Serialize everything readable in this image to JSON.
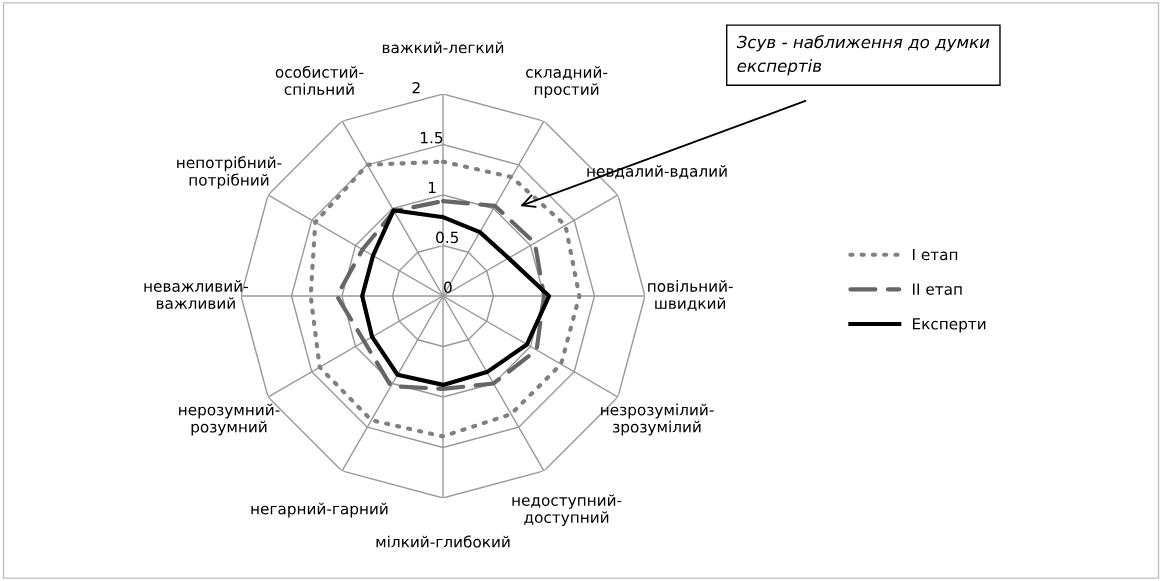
{
  "chart_data": {
    "type": "radar",
    "categories": [
      "важкий-легкий",
      "складний-\nпростий",
      "невдалий-вдалий",
      "повільний-\nшвидкий",
      "незрозумілий-\nзрозумілий",
      "недоступний-\nдоступний",
      "мілкий-глибокий",
      "негарний-гарний",
      "нерозумний-\nрозумний",
      "неважливий-\nважливий",
      "непотрібний-\nпотрібний",
      "особистий-\nспільний"
    ],
    "series": [
      {
        "name": "I етап",
        "color": "#808080",
        "line_style": "dotted",
        "values": [
          1.33,
          1.36,
          1.4,
          1.35,
          1.35,
          1.35,
          1.39,
          1.42,
          1.41,
          1.31,
          1.46,
          1.5
        ]
      },
      {
        "name": "II етап",
        "color": "#666666",
        "line_style": "dashed",
        "values": [
          0.94,
          1.03,
          1.05,
          1.0,
          1.07,
          1.0,
          0.92,
          1.03,
          0.9,
          1.05,
          0.92,
          0.97
        ]
      },
      {
        "name": "Експерти",
        "color": "#000000",
        "line_style": "solid",
        "values": [
          0.78,
          0.73,
          0.75,
          1.05,
          0.96,
          0.87,
          0.88,
          0.9,
          0.81,
          0.8,
          0.8,
          0.98
        ]
      }
    ],
    "ylim": [
      0,
      2
    ],
    "yticks": [
      0,
      0.5,
      1,
      1.5,
      2
    ],
    "grid": true,
    "legend": "right",
    "marker": "none",
    "annotations": [
      "Зсув - наближення до думки експертів"
    ]
  }
}
